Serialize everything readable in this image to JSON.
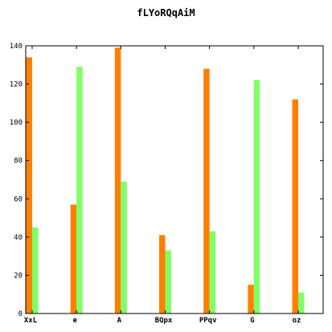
{
  "chart_data": {
    "type": "bar",
    "title": "fLYoRQqAiM",
    "xlabel": "",
    "ylabel": "",
    "categories": [
      "XxL",
      "e",
      "A",
      "BQpx",
      "PPqv",
      "G",
      "oz"
    ],
    "series": [
      {
        "color": "#ff8000",
        "values": [
          134,
          57,
          139,
          41,
          128,
          15,
          112
        ]
      },
      {
        "color": "#80ff66",
        "values": [
          45,
          129,
          69,
          33,
          43,
          122,
          11
        ]
      }
    ],
    "ylim": [
      0,
      140
    ],
    "yticks": [
      0,
      20,
      40,
      60,
      80,
      100,
      120,
      140
    ],
    "grid": false,
    "legend": "none"
  }
}
